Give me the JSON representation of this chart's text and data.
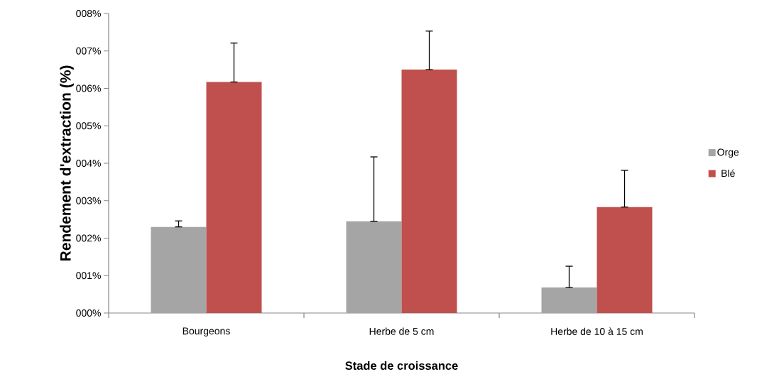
{
  "chart_data": {
    "type": "bar",
    "xlabel": "Stade de croissance",
    "ylabel": "Rendement d'extraction (%)",
    "categories": [
      "Bourgeons",
      "Herbe de 5 cm",
      "Herbe de 10 à 15 cm"
    ],
    "series": [
      {
        "name": "Orge",
        "color": "#a5a5a5",
        "values": [
          2.3,
          2.45,
          0.68
        ],
        "errors": [
          [
            2.3,
            2.46
          ],
          [
            2.45,
            4.17
          ],
          [
            0.68,
            1.25
          ]
        ]
      },
      {
        "name": "Blé",
        "color": "#c0504d",
        "values": [
          6.17,
          6.5,
          2.83
        ],
        "errors": [
          [
            6.17,
            7.21
          ],
          [
            6.5,
            7.53
          ],
          [
            2.83,
            3.81
          ]
        ]
      }
    ],
    "ylim": [
      0,
      8
    ],
    "yticks": [
      {
        "value": 0,
        "label": "000%"
      },
      {
        "value": 1,
        "label": "001%"
      },
      {
        "value": 2,
        "label": "002%"
      },
      {
        "value": 3,
        "label": "003%"
      },
      {
        "value": 4,
        "label": "004%"
      },
      {
        "value": 5,
        "label": "005%"
      },
      {
        "value": 6,
        "label": "006%"
      },
      {
        "value": 7,
        "label": "007%"
      },
      {
        "value": 8,
        "label": "008%"
      }
    ],
    "grid": false,
    "legend": "right"
  }
}
